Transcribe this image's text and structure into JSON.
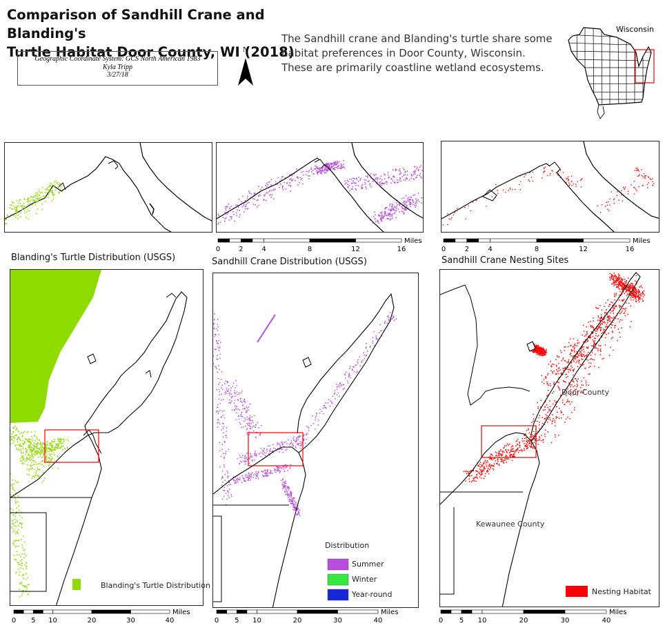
{
  "title": {
    "line1": "Comparison of Sandhill Crane and Blanding's",
    "line2": "Turtle Habitat Door County, WI (2018)"
  },
  "info": {
    "coordinate_system": "Geographic Coordinate System: GCS North American 1983",
    "author": "Kyla Tripp",
    "date": "3/27/18"
  },
  "north_arrow": {
    "label": "N",
    "icon": "north-arrow-icon"
  },
  "description": {
    "line1": "The Sandhill crane and Blanding's turtle share some",
    "line2": "habitat preferences in Door County, Wisconsin.",
    "line3": "These are primarily coastline wetland ecosystems."
  },
  "locator": {
    "label": "Wisconsin"
  },
  "inset_scalebar": {
    "ticks": [
      "0",
      "2",
      "4",
      "8",
      "12",
      "16"
    ],
    "unit": "Miles"
  },
  "main_scalebar": {
    "ticks": [
      "0",
      "5",
      "10",
      "20",
      "30",
      "40"
    ],
    "unit": "Miles"
  },
  "maps": {
    "turtle": {
      "title": "Blanding's Turtle Distribution (USGS)",
      "legend_label": "Blanding's Turtle Distribution",
      "legend_color": "#8fdb00"
    },
    "crane": {
      "title": "Sandhill Crane Distribution (USGS)",
      "legend_title": "Distribution",
      "legend_items": [
        {
          "label": "Summer",
          "color": "#b94de0"
        },
        {
          "label": "Winter",
          "color": "#38e83f"
        },
        {
          "label": "Year-round",
          "color": "#1626d8"
        }
      ]
    },
    "nesting": {
      "title": "Sandhill Crane Nesting Sites",
      "county_door": "Door County",
      "county_kewaunee": "Kewaunee County",
      "legend_label": "Nesting Habitat",
      "legend_color": "#ff0000"
    }
  }
}
